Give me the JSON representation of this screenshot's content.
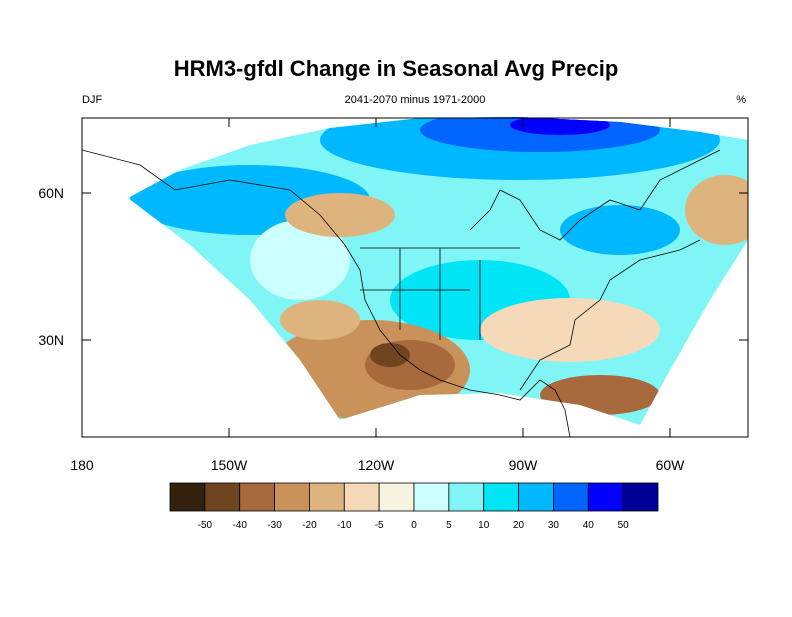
{
  "header": {
    "title": "HRM3-gfdl Change in Seasonal Avg Precip",
    "left": "DJF",
    "center": "2041-2070 minus 1971-2000",
    "right": "%"
  },
  "map": {
    "lon_ticks": [
      {
        "value": -180,
        "label": "180"
      },
      {
        "value": -150,
        "label": "150W"
      },
      {
        "value": -120,
        "label": "120W"
      },
      {
        "value": -90,
        "label": "90W"
      },
      {
        "value": -60,
        "label": "60W"
      }
    ],
    "lat_ticks": [
      {
        "value": 60,
        "label": "60N"
      },
      {
        "value": 30,
        "label": "30N"
      }
    ]
  },
  "colorbar": {
    "levels": [
      -50,
      -40,
      -30,
      -20,
      -10,
      -5,
      0,
      5,
      10,
      20,
      30,
      40,
      50
    ],
    "colors": [
      "#33200d",
      "#6e4520",
      "#a86a3c",
      "#c8925a",
      "#deb47e",
      "#f5d9b8",
      "#f6f3df",
      "#ccffff",
      "#7ff5f5",
      "#00e5f5",
      "#00b8ff",
      "#0066ff",
      "#0000ff",
      "#000099"
    ]
  }
}
